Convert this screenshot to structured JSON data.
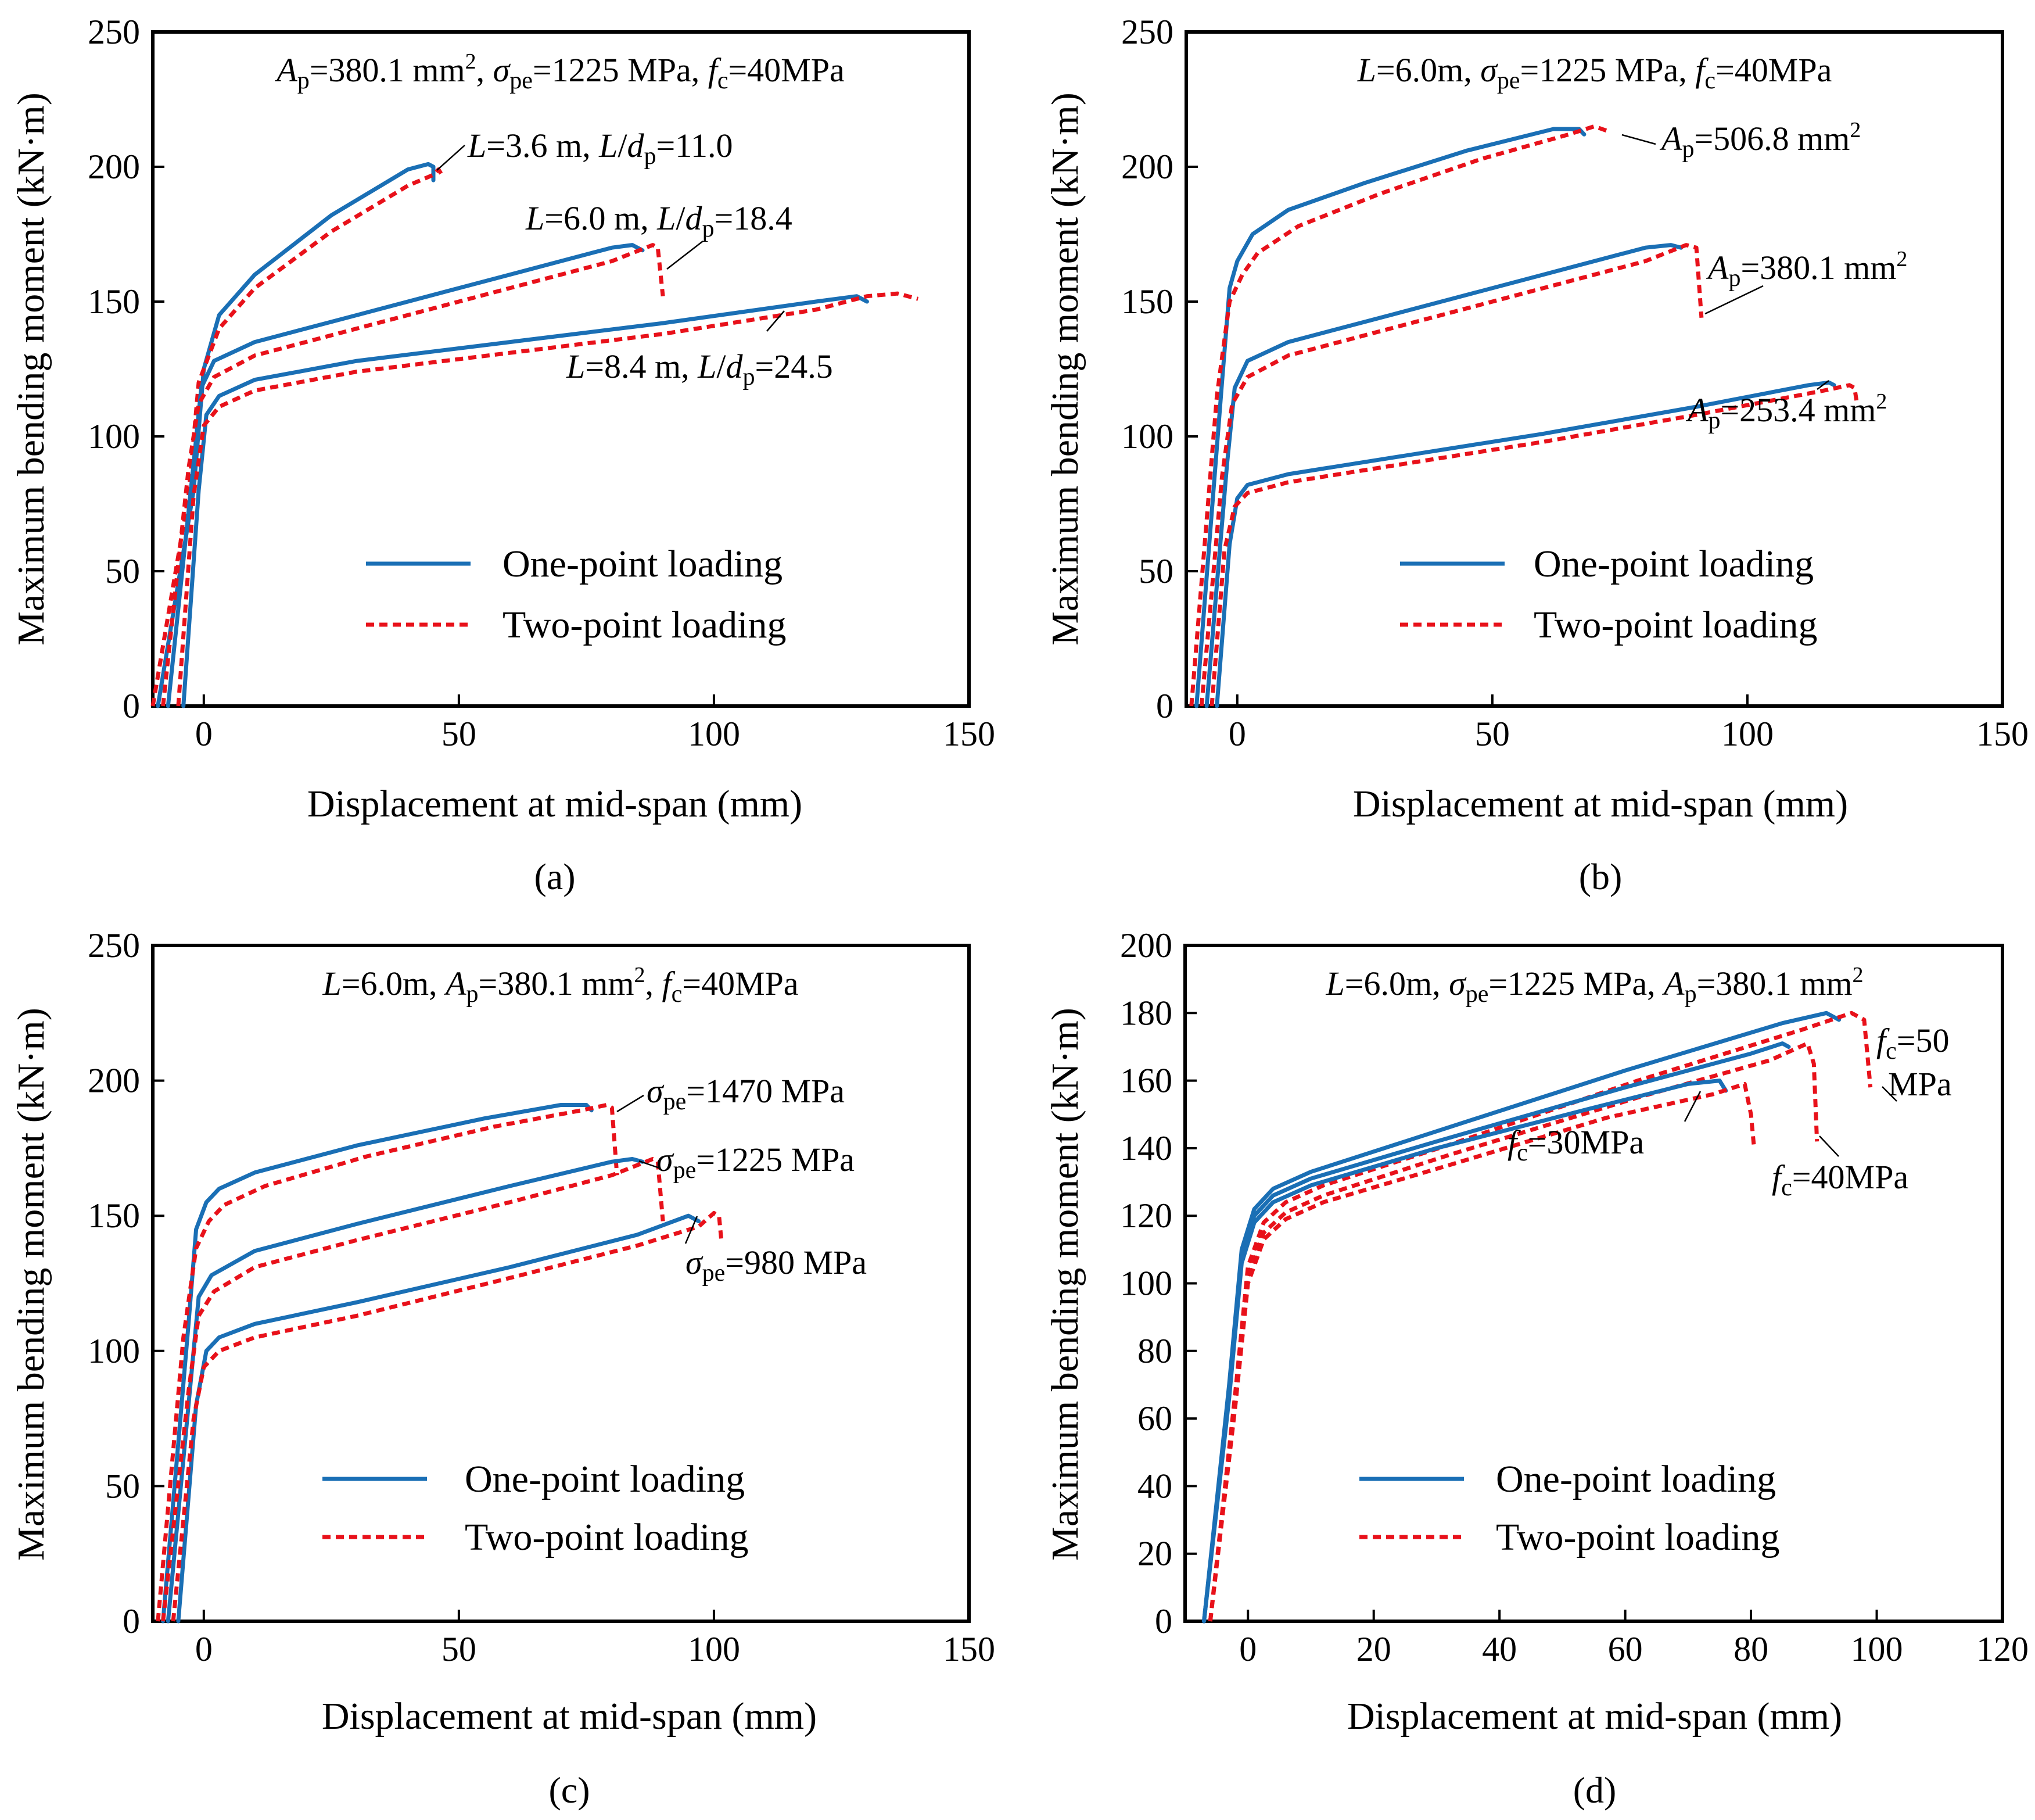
{
  "colors": {
    "one_point": "#1a6fb5",
    "two_point": "#e8111a"
  },
  "chart_data": [
    {
      "panel": "(a)",
      "type": "line",
      "header": "Ap=380.1 mm², σpe=1225 MPa, fc=40MPa",
      "xlabel": "Displacement at mid-span (mm)",
      "ylabel": "Maximum bending moment (kN·m)",
      "xlim": [
        -10,
        150
      ],
      "ylim": [
        0,
        250
      ],
      "xticks": [
        0,
        50,
        100,
        150
      ],
      "yticks": [
        0,
        50,
        100,
        150,
        200,
        250
      ],
      "legend": [
        "One-point loading",
        "Two-point loading"
      ],
      "legend_position": "lower-right",
      "annotations": [
        "L=3.6 m, L/dp=11.0",
        "L=6.0 m, L/dp=18.4",
        "L=8.4 m, L/dp=24.5"
      ],
      "series": [
        {
          "name": "One-point loading",
          "group": "L=3.6 m",
          "style": "solid",
          "x": [
            -9,
            -2,
            0,
            3,
            10,
            25,
            40,
            44,
            45,
            45
          ],
          "y": [
            0,
            80,
            125,
            145,
            160,
            182,
            199,
            201,
            200,
            195
          ]
        },
        {
          "name": "Two-point loading",
          "group": "L=3.6 m",
          "style": "dashed",
          "x": [
            -10,
            -3,
            -1,
            3,
            10,
            25,
            40,
            45,
            46,
            47
          ],
          "y": [
            0,
            78,
            120,
            140,
            155,
            176,
            193,
            197,
            199,
            196
          ]
        },
        {
          "name": "One-point loading",
          "group": "L=6.0 m",
          "style": "solid",
          "x": [
            -7,
            -2,
            -0.5,
            2,
            10,
            30,
            60,
            80,
            84,
            86
          ],
          "y": [
            0,
            90,
            118,
            128,
            135,
            145,
            160,
            170,
            171,
            169
          ]
        },
        {
          "name": "Two-point loading",
          "group": "L=6.0 m",
          "style": "dashed",
          "x": [
            -8,
            -3,
            -1,
            2,
            10,
            30,
            60,
            80,
            88,
            89,
            90
          ],
          "y": [
            0,
            88,
            112,
            122,
            130,
            140,
            155,
            165,
            171,
            170,
            152
          ]
        },
        {
          "name": "One-point loading",
          "group": "L=8.4 m",
          "style": "solid",
          "x": [
            -4,
            -1,
            0.5,
            3,
            10,
            30,
            60,
            90,
            120,
            128,
            130
          ],
          "y": [
            0,
            80,
            108,
            115,
            121,
            128,
            135,
            142,
            150,
            152,
            150
          ]
        },
        {
          "name": "Two-point loading",
          "group": "L=8.4 m",
          "style": "dashed",
          "x": [
            -5,
            -2,
            0,
            3,
            10,
            30,
            60,
            90,
            120,
            130,
            136,
            140
          ],
          "y": [
            0,
            78,
            104,
            111,
            117,
            124,
            131,
            138,
            147,
            152,
            153,
            151
          ]
        }
      ]
    },
    {
      "panel": "(b)",
      "type": "line",
      "header": "L=6.0m, σpe=1225 MPa, fc=40MPa",
      "xlabel": "Displacement at mid-span (mm)",
      "ylabel": "Maximum bending moment (kN·m)",
      "xlim": [
        -10,
        150
      ],
      "ylim": [
        0,
        250
      ],
      "xticks": [
        0,
        50,
        100,
        150
      ],
      "yticks": [
        0,
        50,
        100,
        150,
        200,
        250
      ],
      "legend": [
        "One-point loading",
        "Two-point loading"
      ],
      "legend_position": "lower-right",
      "annotations": [
        "Ap=506.8 mm²",
        "Ap=380.1 mm²",
        "Ap=253.4 mm²"
      ],
      "series": [
        {
          "name": "One-point loading",
          "group": "Ap=506.8",
          "style": "solid",
          "x": [
            -8,
            -3,
            -1.5,
            0,
            3,
            10,
            25,
            45,
            62,
            67,
            68
          ],
          "y": [
            0,
            120,
            155,
            165,
            175,
            184,
            194,
            206,
            214,
            214,
            212
          ]
        },
        {
          "name": "Two-point loading",
          "group": "Ap=506.8",
          "style": "dashed",
          "x": [
            -9,
            -4,
            -1.5,
            1,
            4,
            12,
            28,
            48,
            65,
            70,
            73
          ],
          "y": [
            0,
            115,
            150,
            160,
            168,
            178,
            190,
            203,
            212,
            215,
            213
          ]
        },
        {
          "name": "One-point loading",
          "group": "Ap=380.1",
          "style": "solid",
          "x": [
            -6,
            -2,
            -0.5,
            2,
            10,
            30,
            60,
            80,
            85,
            87
          ],
          "y": [
            0,
            90,
            118,
            128,
            135,
            145,
            160,
            170,
            171,
            170
          ]
        },
        {
          "name": "Two-point loading",
          "group": "Ap=380.1",
          "style": "dashed",
          "x": [
            -7,
            -3,
            -1,
            2,
            10,
            30,
            60,
            80,
            88,
            90,
            91
          ],
          "y": [
            0,
            85,
            112,
            122,
            130,
            140,
            155,
            165,
            171,
            170,
            144
          ]
        },
        {
          "name": "One-point loading",
          "group": "Ap=253.4",
          "style": "solid",
          "x": [
            -4,
            -1.5,
            0,
            2,
            10,
            30,
            60,
            90,
            112,
            116,
            117
          ],
          "y": [
            0,
            60,
            77,
            82,
            86,
            92,
            101,
            111,
            119,
            120,
            119
          ]
        },
        {
          "name": "Two-point loading",
          "group": "Ap=253.4",
          "style": "dashed",
          "x": [
            -5,
            -2.5,
            -0.5,
            2,
            10,
            30,
            60,
            90,
            115,
            120,
            121,
            121.5
          ],
          "y": [
            0,
            58,
            74,
            79,
            83,
            89,
            98,
            108,
            117,
            119,
            118,
            112
          ]
        }
      ]
    },
    {
      "panel": "(c)",
      "type": "line",
      "header": "L=6.0m, Ap=380.1 mm², fc=40MPa",
      "xlabel": "Displacement at mid-span (mm)",
      "ylabel": "Maximum bending moment (kN·m)",
      "xlim": [
        -10,
        150
      ],
      "ylim": [
        0,
        250
      ],
      "xticks": [
        0,
        50,
        100,
        150
      ],
      "yticks": [
        0,
        50,
        100,
        150,
        200,
        250
      ],
      "legend": [
        "One-point loading",
        "Two-point loading"
      ],
      "legend_position": "lower-right",
      "annotations": [
        "σpe=1470 MPa",
        "σpe=1225 MPa",
        "σpe=980 MPa"
      ],
      "series": [
        {
          "name": "One-point loading",
          "group": "σpe=1470",
          "style": "solid",
          "x": [
            -8,
            -3,
            -1.5,
            0.5,
            3,
            10,
            30,
            55,
            70,
            75,
            76
          ],
          "y": [
            0,
            110,
            145,
            155,
            160,
            166,
            176,
            186,
            191,
            191,
            189
          ]
        },
        {
          "name": "Two-point loading",
          "group": "σpe=1470",
          "style": "dashed",
          "x": [
            -9,
            -4,
            -1.5,
            1,
            4,
            12,
            32,
            57,
            74,
            79,
            80,
            81
          ],
          "y": [
            0,
            105,
            138,
            148,
            154,
            161,
            172,
            183,
            189,
            191,
            190,
            165
          ]
        },
        {
          "name": "One-point loading",
          "group": "σpe=1225",
          "style": "solid",
          "x": [
            -7,
            -2.5,
            -1,
            1.5,
            10,
            30,
            60,
            80,
            84,
            86
          ],
          "y": [
            0,
            90,
            120,
            128,
            137,
            147,
            161,
            170,
            171,
            170
          ]
        },
        {
          "name": "Two-point loading",
          "group": "σpe=1225",
          "style": "dashed",
          "x": [
            -8,
            -3,
            -1,
            2,
            10,
            30,
            60,
            80,
            88,
            89,
            90
          ],
          "y": [
            0,
            85,
            113,
            122,
            131,
            141,
            155,
            165,
            171,
            170,
            148
          ]
        },
        {
          "name": "One-point loading",
          "group": "σpe=980",
          "style": "solid",
          "x": [
            -5,
            -1.5,
            0.5,
            3,
            10,
            30,
            60,
            85,
            95,
            97
          ],
          "y": [
            0,
            80,
            100,
            105,
            110,
            118,
            131,
            143,
            150,
            148
          ]
        },
        {
          "name": "Two-point loading",
          "group": "σpe=980",
          "style": "dashed",
          "x": [
            -6,
            -2,
            0,
            3,
            10,
            30,
            60,
            85,
            97,
            100,
            101,
            101.5
          ],
          "y": [
            0,
            75,
            94,
            100,
            105,
            113,
            127,
            139,
            146,
            151,
            150,
            140
          ]
        }
      ]
    },
    {
      "panel": "(d)",
      "type": "line",
      "header": "L=6.0m, σpe=1225 MPa, Ap=380.1 mm²",
      "xlabel": "Displacement at mid-span (mm)",
      "ylabel": "Maximum bending moment (kN·m)",
      "xlim": [
        -10,
        120
      ],
      "ylim": [
        0,
        200
      ],
      "xticks": [
        0,
        20,
        40,
        60,
        80,
        100,
        120
      ],
      "yticks": [
        0,
        20,
        40,
        60,
        80,
        100,
        120,
        140,
        160,
        180,
        200
      ],
      "legend": [
        "One-point loading",
        "Two-point loading"
      ],
      "legend_position": "lower-right",
      "annotations": [
        "fc=50 MPa",
        "fc=30MPa",
        "fc=40MPa"
      ],
      "series": [
        {
          "name": "One-point loading",
          "group": "fc=50",
          "style": "solid",
          "x": [
            -7,
            -3,
            -1,
            1,
            4,
            10,
            30,
            60,
            85,
            92,
            94
          ],
          "y": [
            0,
            70,
            110,
            122,
            128,
            133,
            145,
            163,
            177,
            180,
            178
          ]
        },
        {
          "name": "Two-point loading",
          "group": "fc=50",
          "style": "dashed",
          "x": [
            -6,
            -2,
            0,
            2.5,
            6,
            12,
            32,
            62,
            88,
            96,
            98,
            99
          ],
          "y": [
            0,
            68,
            105,
            118,
            124,
            129,
            141,
            160,
            175,
            180,
            178,
            158
          ]
        },
        {
          "name": "One-point loading",
          "group": "fc=40",
          "style": "solid",
          "x": [
            -7,
            -3,
            -1,
            1,
            4,
            10,
            30,
            60,
            80,
            85,
            86
          ],
          "y": [
            0,
            68,
            108,
            120,
            126,
            131,
            142,
            158,
            168,
            171,
            170
          ]
        },
        {
          "name": "Two-point loading",
          "group": "fc=40",
          "style": "dashed",
          "x": [
            -6,
            -2,
            0,
            2.5,
            6,
            12,
            32,
            62,
            83,
            89,
            90,
            90.5
          ],
          "y": [
            0,
            66,
            102,
            115,
            121,
            126,
            138,
            155,
            166,
            171,
            165,
            142
          ]
        },
        {
          "name": "One-point loading",
          "group": "fc=30",
          "style": "solid",
          "x": [
            -7,
            -3,
            -1,
            1,
            4,
            10,
            30,
            55,
            70,
            75,
            76
          ],
          "y": [
            0,
            66,
            106,
            118,
            124,
            129,
            140,
            152,
            159,
            160,
            157
          ]
        },
        {
          "name": "Two-point loading",
          "group": "fc=30",
          "style": "dashed",
          "x": [
            -6,
            -2,
            0,
            2.5,
            6,
            12,
            32,
            57,
            74,
            79,
            80,
            80.5
          ],
          "y": [
            0,
            64,
            100,
            113,
            119,
            124,
            135,
            149,
            156,
            159,
            150,
            140
          ]
        }
      ]
    }
  ]
}
